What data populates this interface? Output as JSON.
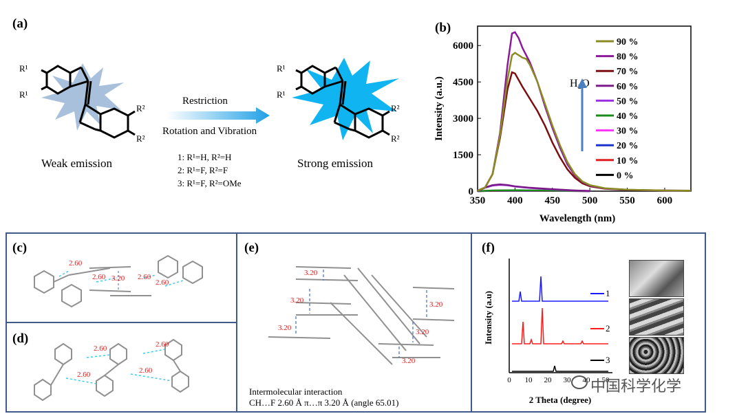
{
  "panels": {
    "a": {
      "label": "(a)",
      "restriction": "Restriction",
      "rotation": "Rotation and Vibration",
      "weak": "Weak emission",
      "strong": "Strong emission",
      "compounds": [
        "1: R¹=H, R²=H",
        "2: R¹=F, R²=F",
        "3: R¹=F, R²=OMe"
      ],
      "r1": "R¹",
      "r2": "R²"
    },
    "b": {
      "label": "(b)",
      "water": "H₂O"
    },
    "c": {
      "label": "(c)",
      "distances": [
        "2.60",
        "2.60",
        "3.20",
        "2.60",
        "2.60"
      ]
    },
    "d": {
      "label": "(d)",
      "distances": [
        "2.60",
        "2.60",
        "2.60",
        "2.60"
      ]
    },
    "e": {
      "label": "(e)",
      "distances": [
        "3.20",
        "3.20",
        "3.20",
        "3.20",
        "3.20",
        "3.20"
      ],
      "caption_line1": "Intermolecular interaction",
      "caption_line2": "CH…F 2.60 Å   π…π 3.20 Å (angle 65.01)"
    },
    "f": {
      "label": "(f)",
      "ylabel": "Intensity (a.u)",
      "xlabel": "2 Theta (degree)",
      "xticks": [
        "0",
        "10",
        "20",
        "30",
        "40",
        "50"
      ],
      "series": [
        {
          "name": "1",
          "color": "#1a1aff"
        },
        {
          "name": "2",
          "color": "#ff1a1a"
        },
        {
          "name": "3",
          "color": "#000000"
        }
      ]
    }
  },
  "watermark": "中国科学化学",
  "chart_data": {
    "type": "line",
    "title": "",
    "xlabel": "Wavelength (nm)",
    "ylabel": "Intensity (a.u.)",
    "xlim": [
      350,
      635
    ],
    "ylim": [
      0,
      6800
    ],
    "xticks": [
      350,
      400,
      450,
      500,
      550,
      600
    ],
    "yticks": [
      0,
      1500,
      3000,
      4500,
      6000
    ],
    "legend_position": "right",
    "series": [
      {
        "name": "90 %",
        "color": "#8b8b23",
        "x": [
          350,
          360,
          370,
          380,
          390,
          396,
          400,
          405,
          410,
          415,
          420,
          430,
          440,
          450,
          460,
          470,
          480,
          490,
          500,
          520,
          550,
          600,
          635
        ],
        "y": [
          20,
          150,
          700,
          2300,
          4600,
          5600,
          5700,
          5600,
          5500,
          5450,
          5200,
          4500,
          3600,
          2700,
          1900,
          1200,
          700,
          400,
          250,
          120,
          60,
          30,
          20
        ]
      },
      {
        "name": "80 %",
        "color": "#8b1a9b",
        "x": [
          350,
          360,
          370,
          380,
          390,
          396,
          400,
          405,
          410,
          415,
          420,
          430,
          440,
          450,
          460,
          470,
          480,
          490,
          500,
          520,
          550,
          600,
          635
        ],
        "y": [
          20,
          150,
          700,
          2400,
          5200,
          6500,
          6550,
          6300,
          5900,
          5600,
          5300,
          4500,
          3500,
          2600,
          1800,
          1100,
          650,
          380,
          230,
          110,
          55,
          30,
          20
        ]
      },
      {
        "name": "70 %",
        "color": "#7b0f0f",
        "x": [
          350,
          360,
          370,
          380,
          390,
          396,
          400,
          410,
          420,
          430,
          440,
          450,
          460,
          470,
          480,
          490,
          500,
          520,
          550,
          600,
          635
        ],
        "y": [
          20,
          150,
          700,
          2200,
          4200,
          4900,
          4850,
          4300,
          3800,
          3300,
          2700,
          2000,
          1400,
          900,
          550,
          320,
          200,
          100,
          50,
          25,
          15
        ]
      },
      {
        "name": "60 %",
        "color": "#7d1a8a",
        "x": [
          350,
          360,
          370,
          380,
          390,
          400,
          420,
          450,
          480,
          500
        ],
        "y": [
          0,
          150,
          250,
          280,
          250,
          200,
          140,
          80,
          30,
          10
        ]
      },
      {
        "name": "50 %",
        "color": "#9b30e0",
        "x": [
          350,
          360,
          370,
          380,
          390,
          400,
          420,
          450,
          480,
          500
        ],
        "y": [
          0,
          140,
          230,
          260,
          240,
          190,
          130,
          70,
          25,
          8
        ]
      },
      {
        "name": "40 %",
        "color": "#1a8a1a",
        "x": [
          350,
          370,
          400,
          450,
          500
        ],
        "y": [
          0,
          30,
          40,
          20,
          5
        ]
      },
      {
        "name": "30 %",
        "color": "#ff33ff",
        "x": [
          350,
          370,
          400,
          450,
          500
        ],
        "y": [
          0,
          25,
          35,
          18,
          4
        ]
      },
      {
        "name": "20 %",
        "color": "#1a33cc",
        "x": [
          350,
          370,
          400,
          450,
          500
        ],
        "y": [
          0,
          20,
          30,
          15,
          3
        ]
      },
      {
        "name": "10 %",
        "color": "#e02020",
        "x": [
          350,
          370,
          400,
          450,
          500
        ],
        "y": [
          0,
          15,
          25,
          12,
          2
        ]
      },
      {
        "name": "0 %",
        "color": "#000000",
        "x": [
          350,
          370,
          400,
          450,
          500
        ],
        "y": [
          0,
          10,
          20,
          10,
          1
        ]
      }
    ]
  }
}
